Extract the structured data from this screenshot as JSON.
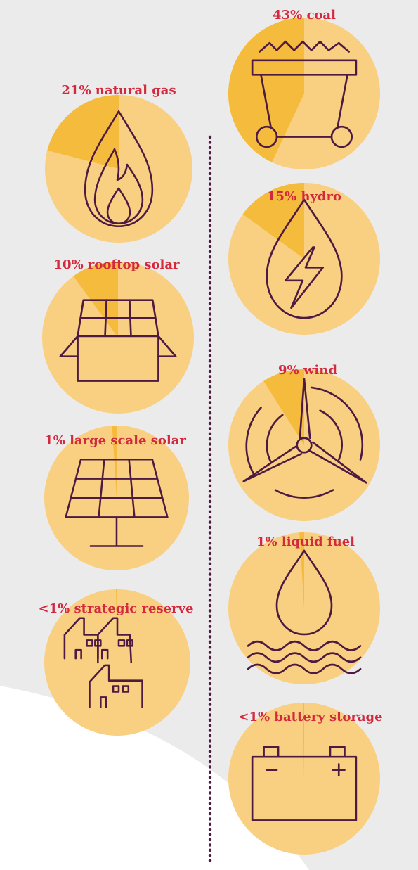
{
  "colors": {
    "background": "#ebebeb",
    "swoosh": "#ffffff",
    "circle_base": "#f9d082",
    "wedge": "#f5bb3c",
    "label": "#d2293d",
    "icon_stroke": "#4e1a42",
    "divider": "#4e1a42"
  },
  "chart_data": {
    "type": "pie",
    "title": "",
    "items": [
      {
        "id": "coal",
        "label": "43% coal",
        "value": 43,
        "icon": "coal-cart-icon"
      },
      {
        "id": "natural-gas",
        "label": "21% natural gas",
        "value": 21,
        "icon": "flame-icon"
      },
      {
        "id": "hydro",
        "label": "15% hydro",
        "value": 15,
        "icon": "water-drop-lightning-icon"
      },
      {
        "id": "rooftop-solar",
        "label": "10% rooftop solar",
        "value": 10,
        "icon": "house-solar-panel-icon"
      },
      {
        "id": "wind",
        "label": "9% wind",
        "value": 9,
        "icon": "wind-turbine-icon"
      },
      {
        "id": "large-scale-solar",
        "label": "1% large scale solar",
        "value": 1,
        "icon": "solar-panel-icon"
      },
      {
        "id": "liquid-fuel",
        "label": "1% liquid fuel",
        "value": 1,
        "icon": "fuel-drop-icon"
      },
      {
        "id": "strategic-reserve",
        "label": "<1% strategic reserve",
        "value": 0.3,
        "icon": "factories-icon"
      },
      {
        "id": "battery-storage",
        "label": "<1% battery storage",
        "value": 0.3,
        "icon": "battery-icon"
      }
    ]
  }
}
